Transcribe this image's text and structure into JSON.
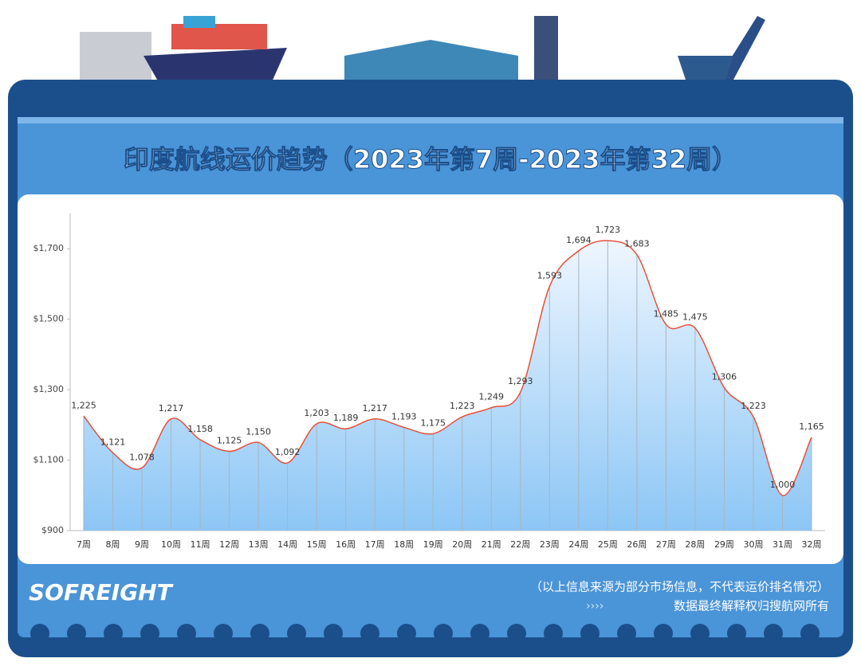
{
  "chart_data": {
    "type": "line",
    "title": "印度航线运价趋势（2023年第7周-2023年第32周）",
    "brand": "SOFREIGHT",
    "notes": [
      "（以上信息来源为部分市场信息，不代表运价排名情况）",
      "数据最终解释权归搜航网所有"
    ],
    "categories": [
      "7周",
      "8周",
      "9周",
      "10周",
      "11周",
      "12周",
      "13周",
      "14周",
      "15周",
      "16周",
      "17周",
      "18周",
      "19周",
      "20周",
      "21周",
      "22周",
      "23周",
      "24周",
      "25周",
      "26周",
      "27周",
      "28周",
      "29周",
      "30周",
      "31周",
      "32周"
    ],
    "values": [
      1225,
      1121,
      1078,
      1217,
      1158,
      1125,
      1150,
      1092,
      1203,
      1189,
      1217,
      1193,
      1175,
      1223,
      1249,
      1293,
      1593,
      1694,
      1723,
      1683,
      1485,
      1475,
      1306,
      1223,
      1000,
      1165
    ],
    "value_labels": [
      "1,225",
      "1,121",
      "1,078",
      "1,217",
      "1,158",
      "1,125",
      "1,150",
      "1,092",
      "1,203",
      "1,189",
      "1,217",
      "1,193",
      "1,175",
      "1,223",
      "1,249",
      "1,293",
      "1,593",
      "1,694",
      "1,723",
      "1,683",
      "1,485",
      "1,475",
      "1,306",
      "1,223",
      "1,000",
      "1,165"
    ],
    "color": "#e8503a",
    "ylim": [
      900,
      1800
    ],
    "yticks": [
      {
        "value": 900,
        "label": "$900"
      },
      {
        "value": 1100,
        "label": "$1,100"
      },
      {
        "value": 1300,
        "label": "$1,300"
      },
      {
        "value": 1500,
        "label": "$1,500"
      },
      {
        "value": 1700,
        "label": "$1,700"
      }
    ]
  }
}
